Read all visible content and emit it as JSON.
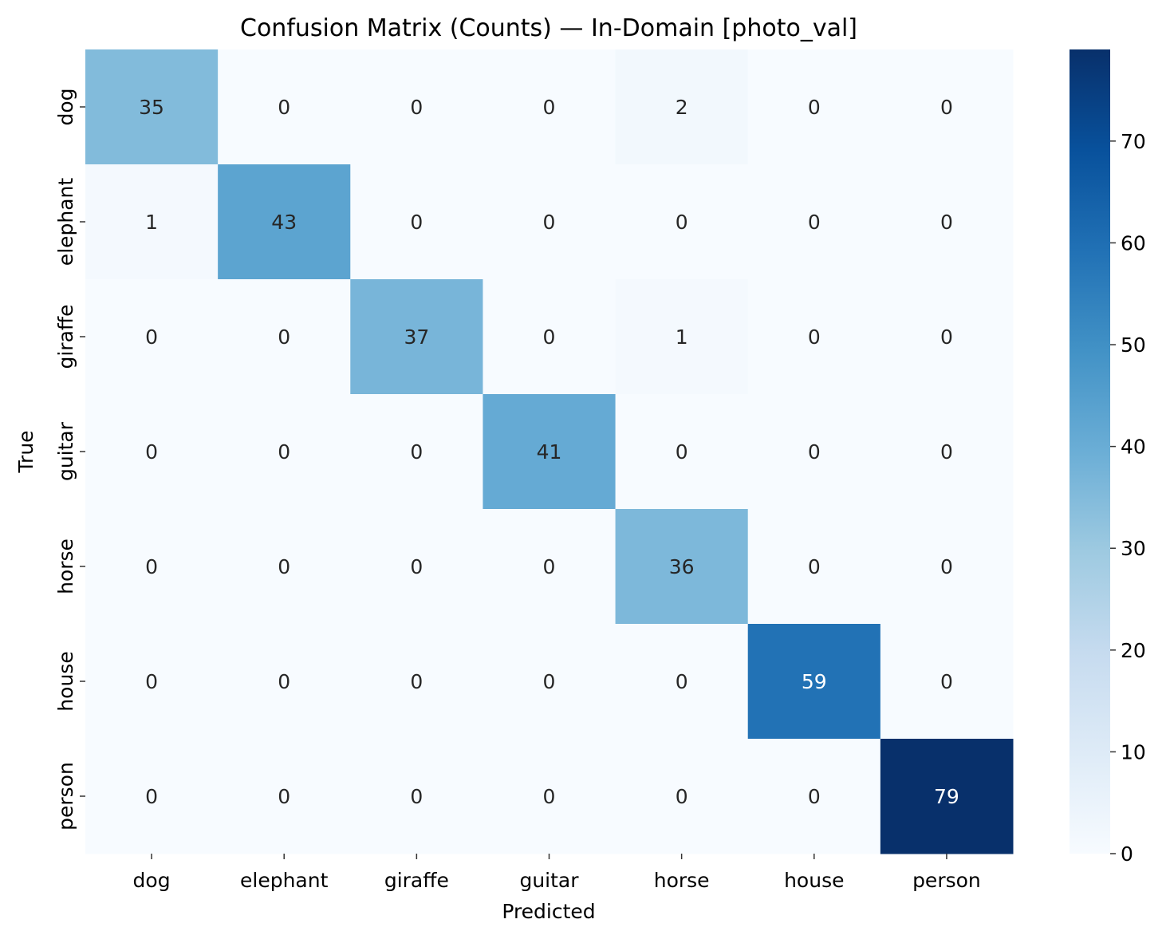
{
  "chart_data": {
    "type": "heatmap",
    "title": "Confusion Matrix (Counts) — In-Domain [photo_val]",
    "xlabel": "Predicted",
    "ylabel": "True",
    "x_categories": [
      "dog",
      "elephant",
      "giraffe",
      "guitar",
      "horse",
      "house",
      "person"
    ],
    "y_categories": [
      "dog",
      "elephant",
      "giraffe",
      "guitar",
      "horse",
      "house",
      "person"
    ],
    "values": [
      [
        35,
        0,
        0,
        0,
        2,
        0,
        0
      ],
      [
        1,
        43,
        0,
        0,
        0,
        0,
        0
      ],
      [
        0,
        0,
        37,
        0,
        1,
        0,
        0
      ],
      [
        0,
        0,
        0,
        41,
        0,
        0,
        0
      ],
      [
        0,
        0,
        0,
        0,
        36,
        0,
        0
      ],
      [
        0,
        0,
        0,
        0,
        0,
        59,
        0
      ],
      [
        0,
        0,
        0,
        0,
        0,
        0,
        79
      ]
    ],
    "colormap": "Blues",
    "colorbar": {
      "range": [
        0,
        79
      ],
      "ticks": [
        0,
        10,
        20,
        30,
        40,
        50,
        60,
        70
      ]
    },
    "annotated": true,
    "grid": false
  }
}
